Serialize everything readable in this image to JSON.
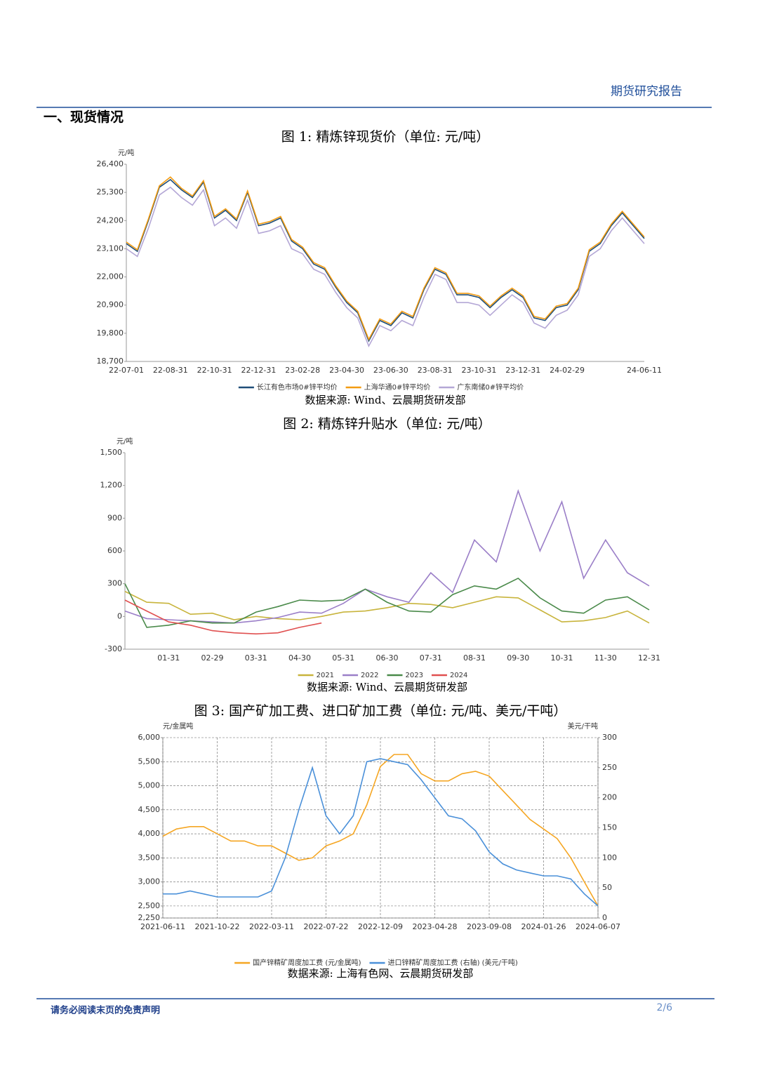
{
  "header": {
    "title": "期货研究报告"
  },
  "section_title": "一、现货情况",
  "chart_data": [
    {
      "type": "line",
      "title": "图 1:  精炼锌现货价（单位: 元/吨）",
      "source": "数据来源: Wind、云晨期货研发部",
      "y_label": "元/吨",
      "categories": [
        "22-07-01",
        null,
        null,
        null,
        "22-08-31",
        null,
        null,
        null,
        "22-10-31",
        null,
        null,
        null,
        "22-12-31",
        null,
        null,
        null,
        "23-02-28",
        null,
        null,
        null,
        "23-04-30",
        null,
        null,
        null,
        "23-06-30",
        null,
        null,
        null,
        "23-08-31",
        null,
        null,
        null,
        "23-10-31",
        null,
        null,
        null,
        "23-12-31",
        null,
        null,
        null,
        "24-02-29",
        null,
        null,
        null,
        null,
        null,
        null,
        "24-06-11"
      ],
      "ylim": [
        18700,
        26400
      ],
      "yticks": [
        {
          "value": 18700,
          "label": "18,700"
        },
        {
          "value": 19800,
          "label": "19,800"
        },
        {
          "value": 20900,
          "label": "20,900"
        },
        {
          "value": 22000,
          "label": "22,000"
        },
        {
          "value": 23100,
          "label": "23,100"
        },
        {
          "value": 24200,
          "label": "24,200"
        },
        {
          "value": 25300,
          "label": "25,300"
        },
        {
          "value": 26400,
          "label": "26,400"
        }
      ],
      "grid": false,
      "series": [
        {
          "name": "长江有色市场0#锌平均价",
          "color": "#1f4e79",
          "values": [
            23300,
            23000,
            24200,
            25500,
            25800,
            25400,
            25100,
            25700,
            24300,
            24600,
            24200,
            25300,
            24000,
            24100,
            24300,
            23400,
            23100,
            22500,
            22300,
            21600,
            21000,
            20600,
            19500,
            20300,
            20100,
            20600,
            20400,
            21500,
            22300,
            22100,
            21300,
            21300,
            21200,
            20800,
            21200,
            21500,
            21200,
            20400,
            20300,
            20800,
            20900,
            21500,
            23000,
            23300,
            24000,
            24500,
            24000,
            23500
          ]
        },
        {
          "name": "上海华通0#锌平均价",
          "color": "#f39c12",
          "values": [
            23360,
            23060,
            24260,
            25560,
            25900,
            25460,
            25160,
            25760,
            24360,
            24660,
            24260,
            25360,
            24060,
            24160,
            24360,
            23460,
            23160,
            22560,
            22360,
            21660,
            21060,
            20660,
            19560,
            20360,
            20160,
            20660,
            20460,
            21560,
            22360,
            22160,
            21360,
            21360,
            21260,
            20860,
            21260,
            21560,
            21260,
            20460,
            20360,
            20860,
            20960,
            21560,
            23060,
            23360,
            24060,
            24560,
            24060,
            23560
          ]
        },
        {
          "name": "广东南储0#锌平均价",
          "color": "#b4a7d6",
          "values": [
            23100,
            22800,
            23900,
            25200,
            25500,
            25100,
            24800,
            25400,
            24000,
            24300,
            23900,
            25000,
            23700,
            23800,
            24000,
            23100,
            22900,
            22300,
            22100,
            21400,
            20800,
            20400,
            19300,
            20100,
            19900,
            20300,
            20100,
            21200,
            22100,
            21900,
            21000,
            21000,
            20900,
            20500,
            20900,
            21300,
            21000,
            20200,
            20000,
            20500,
            20700,
            21300,
            22800,
            23100,
            23800,
            24300,
            23800,
            23300
          ]
        }
      ]
    },
    {
      "type": "line",
      "title": "图 2:  精炼锌升贴水（单位: 元/吨）",
      "source": "数据来源: Wind、云晨期货研发部",
      "y_label": "元/吨",
      "categories": [
        null,
        null,
        "01-31",
        null,
        "02-29",
        null,
        "03-31",
        null,
        "04-30",
        null,
        "05-31",
        null,
        "06-30",
        null,
        "07-31",
        null,
        "08-31",
        null,
        "09-30",
        null,
        "10-31",
        null,
        "11-30",
        null,
        "12-31"
      ],
      "ylim": [
        -300,
        1500
      ],
      "yticks": [
        -300,
        0,
        300,
        600,
        900,
        {
          "value": 1200,
          "label": "1,200"
        },
        {
          "value": 1500,
          "label": "1,500"
        }
      ],
      "grid": false,
      "series": [
        {
          "name": "2021",
          "color": "#c8b43c",
          "values": [
            230,
            130,
            120,
            20,
            30,
            -30,
            0,
            -20,
            -30,
            0,
            40,
            50,
            80,
            120,
            110,
            80,
            130,
            180,
            170,
            60,
            -50,
            -40,
            -10,
            50,
            -60
          ]
        },
        {
          "name": "2022",
          "color": "#9b7fc8",
          "values": [
            50,
            -20,
            -30,
            -40,
            -50,
            -60,
            -40,
            -10,
            40,
            30,
            120,
            250,
            180,
            130,
            400,
            220,
            700,
            500,
            1150,
            600,
            1050,
            350,
            700,
            400,
            280
          ]
        },
        {
          "name": "2023",
          "color": "#4a8a4a",
          "values": [
            300,
            -100,
            -80,
            -40,
            -60,
            -60,
            40,
            90,
            150,
            140,
            150,
            250,
            130,
            50,
            40,
            200,
            280,
            250,
            350,
            170,
            50,
            30,
            150,
            180,
            60
          ]
        },
        {
          "name": "2024",
          "color": "#e05050",
          "values": [
            150,
            50,
            -50,
            -80,
            -130,
            -150,
            -160,
            -150,
            -100,
            -60,
            null,
            null,
            null,
            null,
            null,
            null,
            null,
            null,
            null,
            null,
            null,
            null,
            null,
            null,
            null
          ]
        }
      ]
    },
    {
      "type": "line",
      "title": "图 3:  国产矿加工费、进口矿加工费（单位: 元/吨、美元/干吨）",
      "source": "数据来源: 上海有色网、云晨期货研发部",
      "y_label": "元/金属吨",
      "y2_label": "美元/干吨",
      "categories": [
        "2021-06-11",
        null,
        null,
        null,
        "2021-10-22",
        null,
        null,
        null,
        "2022-03-11",
        null,
        null,
        null,
        "2022-07-22",
        null,
        null,
        null,
        "2022-12-09",
        null,
        null,
        null,
        "2023-04-28",
        null,
        null,
        null,
        "2023-09-08",
        null,
        null,
        null,
        "2024-01-26",
        null,
        null,
        null,
        "2024-06-07"
      ],
      "ylim": [
        2250,
        6000
      ],
      "yticks": [
        {
          "value": 2250,
          "label": "2,250"
        },
        {
          "value": 2500,
          "label": "2,500"
        },
        {
          "value": 3000,
          "label": "3,000"
        },
        {
          "value": 3500,
          "label": "3,500"
        },
        {
          "value": 4000,
          "label": "4,000"
        },
        {
          "value": 4500,
          "label": "4,500"
        },
        {
          "value": 5000,
          "label": "5,000"
        },
        {
          "value": 5500,
          "label": "5,500"
        },
        {
          "value": 6000,
          "label": "6,000"
        }
      ],
      "y2lim": [
        0,
        300
      ],
      "y2ticks": [
        0,
        50,
        100,
        150,
        200,
        250,
        300
      ],
      "grid": true,
      "series": [
        {
          "name": "国产锌精矿周度加工费 (元/金属吨)",
          "color": "#f5a623",
          "values": [
            3950,
            4100,
            4150,
            4150,
            4000,
            3850,
            3850,
            3750,
            3750,
            3600,
            3450,
            3500,
            3750,
            3850,
            4000,
            4600,
            5400,
            5650,
            5650,
            5250,
            5100,
            5100,
            5250,
            5300,
            5200,
            4900,
            4600,
            4300,
            4100,
            3900,
            3500,
            3000,
            2500
          ]
        },
        {
          "name": "进口锌精矿周度加工费 (右轴) (美元/干吨)",
          "color": "#4a90d9",
          "axis": "y2",
          "values": [
            40,
            40,
            45,
            40,
            35,
            35,
            35,
            35,
            45,
            100,
            180,
            250,
            170,
            140,
            170,
            260,
            265,
            260,
            255,
            230,
            200,
            170,
            165,
            145,
            110,
            90,
            80,
            75,
            70,
            70,
            65,
            40,
            20
          ]
        }
      ]
    }
  ],
  "footer": {
    "disclaimer": "请务必阅读末页的免责声明",
    "page": "2/6"
  }
}
